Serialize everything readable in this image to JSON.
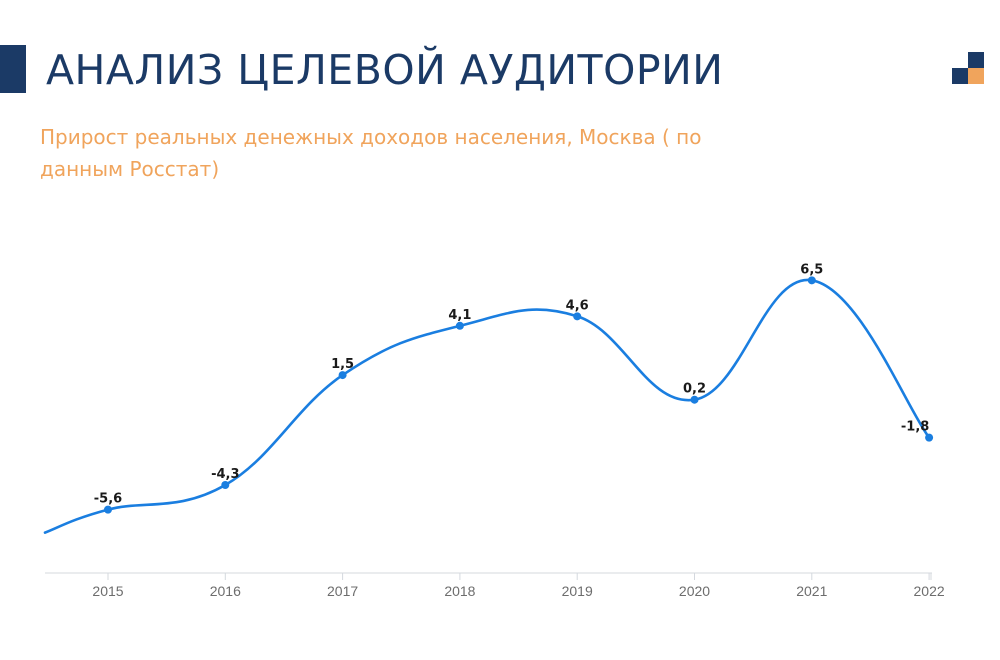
{
  "header": {
    "title": "АНАЛИЗ ЦЕЛЕВОЙ АУДИТОРИИ",
    "subtitle": "Прирост реальных денежных доходов населения, Москва ( по данным Росстат)"
  },
  "colors": {
    "title": "#1b3a66",
    "subtitle": "#f0a45c",
    "line": "#1a7ee0",
    "logo_dark": "#1b3a66",
    "logo_orange": "#f0a45c"
  },
  "chart_data": {
    "type": "line",
    "categories": [
      "2015",
      "2016",
      "2017",
      "2018",
      "2019",
      "2020",
      "2021",
      "2022"
    ],
    "values": [
      -5.6,
      -4.3,
      1.5,
      4.1,
      4.6,
      0.2,
      6.5,
      -1.8
    ],
    "value_labels": [
      "-5,6",
      "-4,3",
      "1,5",
      "4,1",
      "4,6",
      "0,2",
      "6,5",
      "-1,8"
    ],
    "title": "",
    "xlabel": "",
    "ylabel": "",
    "grid": false,
    "legend": "none"
  }
}
